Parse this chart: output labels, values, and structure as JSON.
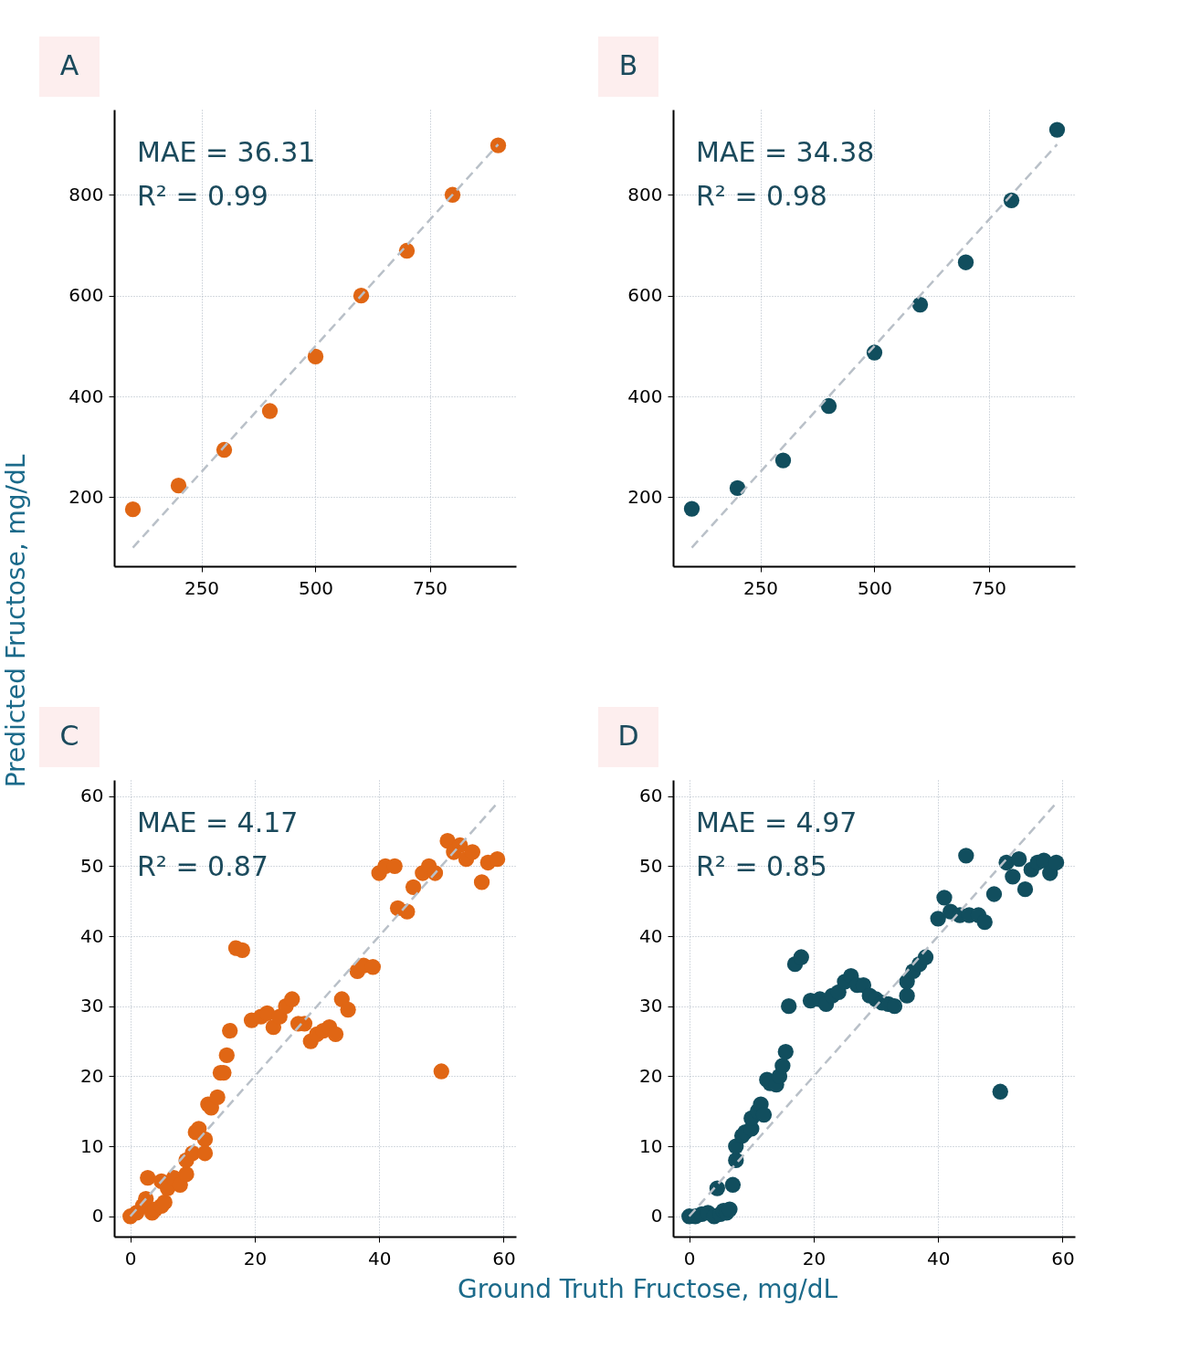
{
  "chart_data": [
    {
      "type": "scatter",
      "ylabel": "Predicted Fructose, mg/dL",
      "annotations": [
        "A",
        "MAE = 36.31",
        "R² = 0.99"
      ],
      "xlim": [
        59,
        939
      ],
      "ylim": [
        63,
        969
      ],
      "xticks": [
        250,
        500,
        750
      ],
      "yticks": [
        200,
        400,
        600,
        800
      ],
      "grid": true,
      "marker": "circle",
      "series": [
        {
          "type": "line",
          "marker": "none",
          "line_style": "dashed",
          "color": "#b9c0c8",
          "x": [
            100,
            900
          ],
          "values": [
            100,
            900
          ]
        },
        {
          "color": "#e06614",
          "x": [
            100,
            200,
            300,
            400,
            500,
            600,
            700,
            800,
            900
          ],
          "values": [
            176,
            223,
            294,
            371,
            479,
            600,
            689,
            800,
            898
          ]
        }
      ]
    },
    {
      "type": "scatter",
      "annotations": [
        "B",
        "MAE = 34.38",
        "R² = 0.98"
      ],
      "xlim": [
        59,
        939
      ],
      "ylim": [
        63,
        969
      ],
      "xticks": [
        250,
        500,
        750
      ],
      "yticks": [
        200,
        400,
        600,
        800
      ],
      "grid": true,
      "marker": "circle",
      "series": [
        {
          "type": "line",
          "marker": "none",
          "line_style": "dashed",
          "color": "#b9c0c8",
          "x": [
            100,
            900
          ],
          "values": [
            100,
            900
          ]
        },
        {
          "color": "#114e5e",
          "x": [
            100,
            200,
            300,
            400,
            500,
            600,
            700,
            800,
            900
          ],
          "values": [
            177,
            218,
            273,
            381,
            487,
            582,
            666,
            789,
            929
          ]
        }
      ]
    },
    {
      "type": "scatter",
      "xlabel": "Ground Truth Fructose, mg/dL",
      "annotations": [
        "C",
        "MAE = 4.17",
        "R² = 0.87"
      ],
      "xlim": [
        -2.6,
        62
      ],
      "ylim": [
        -2.9,
        62.3
      ],
      "xticks": [
        0,
        20,
        40,
        60
      ],
      "yticks": [
        0,
        10,
        20,
        30,
        40,
        50,
        60
      ],
      "grid": true,
      "marker": "circle",
      "series": [
        {
          "type": "line",
          "marker": "none",
          "line_style": "dashed",
          "color": "#b9c0c8",
          "x": [
            0,
            59
          ],
          "values": [
            0,
            59
          ]
        },
        {
          "color": "#e06614",
          "x": [
            0,
            1,
            2,
            2.5,
            2.8,
            3.5,
            4,
            5,
            5.5,
            5,
            6,
            7,
            8,
            9,
            9,
            10,
            10.5,
            11,
            12,
            12,
            12.5,
            13,
            14,
            14.5,
            15,
            15.5,
            16,
            17,
            18,
            19.5,
            21,
            22,
            23,
            24,
            25,
            26,
            27,
            28,
            29,
            30,
            31,
            32,
            33,
            34,
            35,
            36.5,
            37.5,
            39,
            40,
            41,
            42.5,
            43,
            44.5,
            45.5,
            47,
            48,
            49,
            50,
            51,
            52,
            53,
            54,
            55,
            56.5,
            57.5,
            59
          ],
          "values": [
            0,
            0.5,
            1.5,
            2.5,
            5.5,
            0.5,
            1,
            1.5,
            2,
            5,
            4,
            5.5,
            4.5,
            6,
            8,
            9,
            12,
            12.5,
            11,
            9,
            16,
            15.5,
            17,
            20.5,
            20.5,
            23,
            26.5,
            38.3,
            38,
            28,
            28.5,
            29,
            27,
            28.5,
            30,
            31,
            27.5,
            27.5,
            25,
            26,
            26.5,
            27,
            26,
            31,
            29.5,
            35,
            35.8,
            35.6,
            49,
            50,
            50,
            44,
            43.5,
            47,
            49,
            50,
            49,
            20.7,
            53.6,
            52,
            53,
            51,
            52,
            47.7,
            50.5,
            51
          ]
        }
      ]
    },
    {
      "type": "scatter",
      "annotations": [
        "D",
        "MAE = 4.97",
        "R² = 0.85"
      ],
      "xlim": [
        -2.6,
        62
      ],
      "ylim": [
        -2.9,
        62.3
      ],
      "xticks": [
        0,
        20,
        40,
        60
      ],
      "yticks": [
        0,
        10,
        20,
        30,
        40,
        50,
        60
      ],
      "grid": true,
      "marker": "circle",
      "series": [
        {
          "type": "line",
          "marker": "none",
          "line_style": "dashed",
          "color": "#b9c0c8",
          "x": [
            0,
            59
          ],
          "values": [
            0,
            59
          ]
        },
        {
          "color": "#114e5e",
          "x": [
            0,
            1,
            2,
            3,
            4,
            5,
            5.5,
            6,
            6.5,
            4.5,
            7,
            7.5,
            7.5,
            8.5,
            9,
            10,
            10,
            11,
            11.5,
            12,
            12.5,
            13,
            14,
            14.5,
            15,
            15.5,
            16,
            17,
            18,
            19.5,
            21,
            22,
            23,
            24,
            25,
            26,
            27,
            28,
            29,
            30,
            31,
            32,
            33,
            35,
            35,
            36,
            37,
            38,
            40,
            41,
            42,
            43.5,
            44.5,
            45,
            46.5,
            47.5,
            49,
            50,
            51,
            52,
            53,
            54,
            55,
            56,
            57,
            58,
            59
          ],
          "values": [
            0,
            0,
            0.3,
            0.5,
            0,
            0.3,
            0.8,
            0.5,
            1,
            4,
            4.5,
            8,
            10,
            11.5,
            12,
            12.5,
            14,
            15,
            16,
            14.5,
            19.5,
            19,
            18.8,
            20,
            21.5,
            23.5,
            30,
            36,
            37,
            30.8,
            31,
            30.3,
            31.5,
            32,
            33.5,
            34.3,
            33,
            33,
            31.5,
            31,
            30.5,
            30.3,
            30,
            31.5,
            33.5,
            35,
            36,
            37,
            42.5,
            45.5,
            43.5,
            43,
            51.5,
            43,
            43,
            42,
            46,
            17.8,
            50.5,
            48.5,
            51,
            46.7,
            49.5,
            50.5,
            50.8,
            49,
            50.5
          ]
        }
      ]
    }
  ]
}
